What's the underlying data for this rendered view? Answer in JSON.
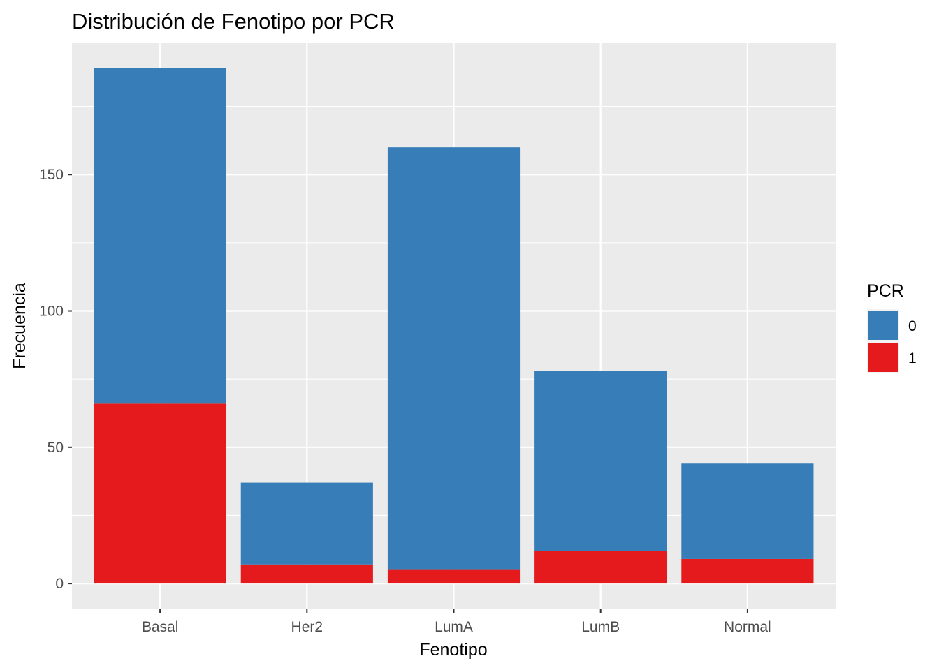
{
  "chart_data": {
    "type": "bar",
    "stacked": true,
    "title": "Distribución de Fenotipo por PCR",
    "xlabel": "Fenotipo",
    "ylabel": "Frecuencia",
    "categories": [
      "Basal",
      "Her2",
      "LumA",
      "LumB",
      "Normal"
    ],
    "series": [
      {
        "name": "0",
        "color": "#377EB8",
        "values": [
          123,
          30,
          155,
          66,
          35
        ]
      },
      {
        "name": "1",
        "color": "#E41A1C",
        "values": [
          66,
          7,
          5,
          12,
          9
        ]
      }
    ],
    "ylim": [
      -9.45,
      198.45
    ],
    "yticks": [
      0,
      50,
      100,
      150
    ],
    "ytick_labels": [
      "0",
      "50",
      "100",
      "150"
    ],
    "grid": true,
    "legend": {
      "title": "PCR",
      "position": "right"
    },
    "panel_background": "#EBEBEB",
    "grid_color": "#FFFFFF"
  }
}
